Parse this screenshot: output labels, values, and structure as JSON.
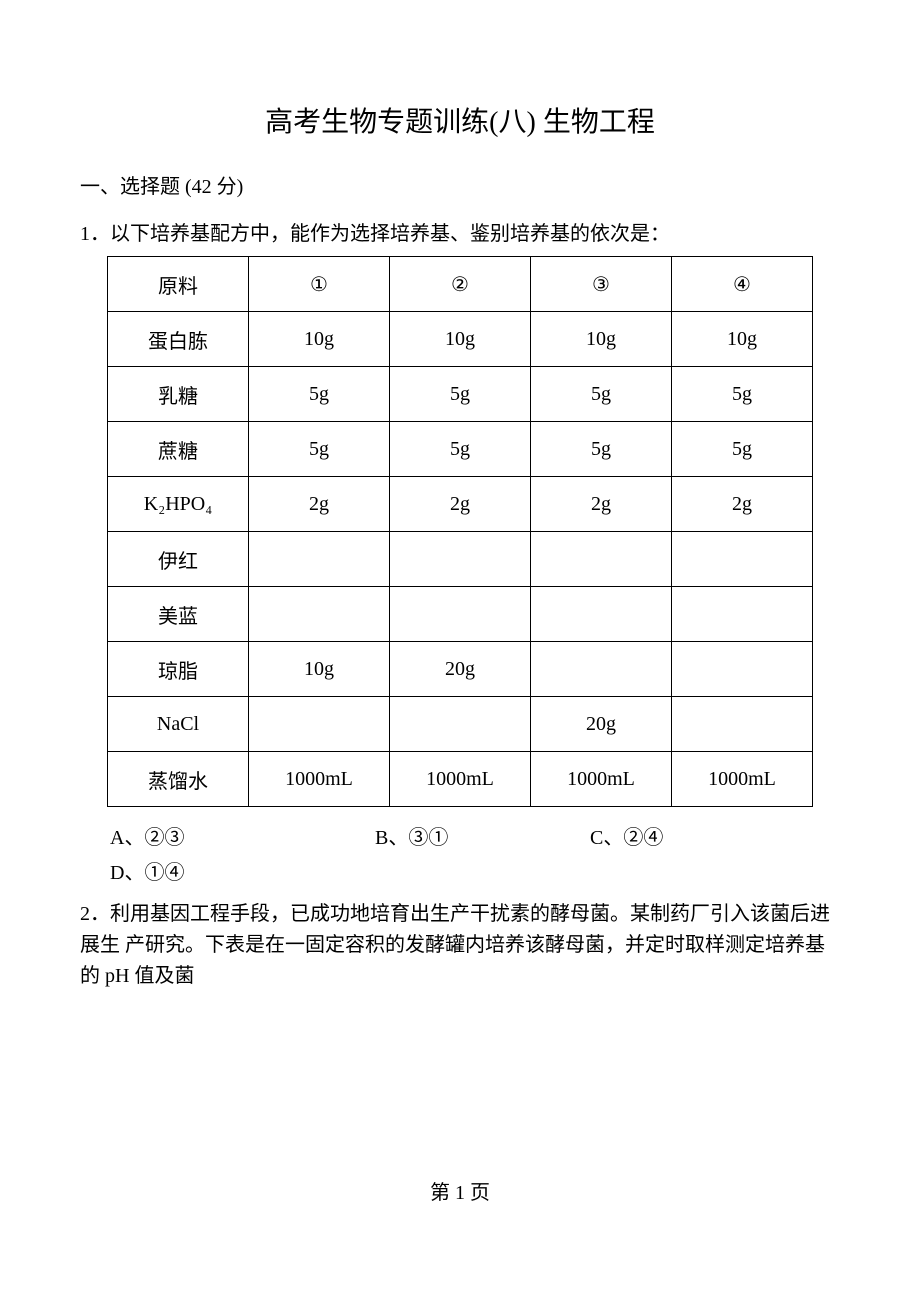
{
  "title": "高考生物专题训练(八)  生物工程",
  "section_header": "一、选择题  (42 分)",
  "q1": {
    "lead": "1．以下培养基配方中，能作为选择培养基、鉴别培养基的依次是：",
    "table": {
      "columns": [
        "原料",
        "①",
        "②",
        "③",
        "④"
      ],
      "rows": [
        [
          "蛋白胨",
          "10g",
          "10g",
          "10g",
          "10g"
        ],
        [
          "乳糖",
          "5g",
          "5g",
          "5g",
          "5g"
        ],
        [
          "蔗糖",
          "5g",
          "5g",
          "5g",
          "5g"
        ],
        [
          "K₂HPO₄",
          "2g",
          "2g",
          "2g",
          "2g"
        ],
        [
          "伊红",
          "",
          "",
          "",
          ""
        ],
        [
          "美蓝",
          "",
          "",
          "",
          ""
        ],
        [
          "琼脂",
          "10g",
          "20g",
          "",
          ""
        ],
        [
          "NaCl",
          "",
          "",
          "20g",
          ""
        ],
        [
          "蒸馏水",
          "1000mL",
          "1000mL",
          "1000mL",
          "1000mL"
        ]
      ]
    },
    "options": {
      "A": "A、②③",
      "B": "B、③①",
      "C": "C、②④",
      "D": "D、①④"
    }
  },
  "q2": {
    "text": "2．利用基因工程手段，已成功地培育出生产干扰素的酵母菌。某制药厂引入该菌后进展生 产研究。下表是在一固定容积的发酵罐内培养该酵母菌，并定时取样测定培养基的 pH 值及菌"
  },
  "page_number": "第 1 页"
}
